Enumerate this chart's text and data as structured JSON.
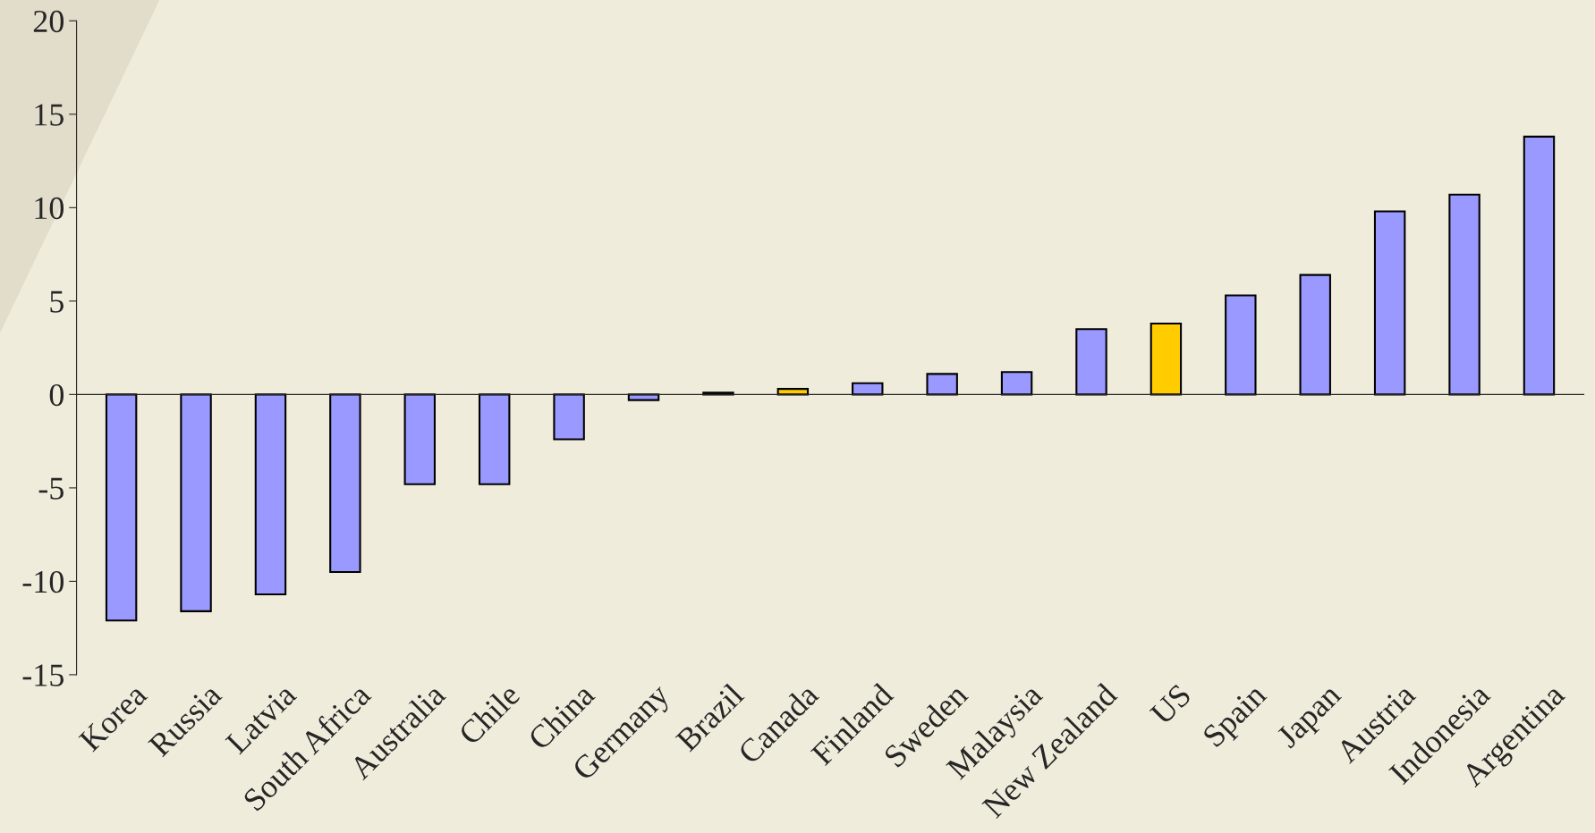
{
  "chart_data": {
    "type": "bar",
    "categories": [
      "Korea",
      "Russia",
      "Latvia",
      "South Africa",
      "Australia",
      "Chile",
      "China",
      "Germany",
      "Brazil",
      "Canada",
      "Finland",
      "Sweden",
      "Malaysia",
      "New Zealand",
      "US",
      "Spain",
      "Japan",
      "Austria",
      "Indonesia",
      "Argentina"
    ],
    "values": [
      -12.1,
      -11.6,
      -10.7,
      -9.5,
      -4.8,
      -4.8,
      -2.4,
      -0.3,
      0.1,
      0.3,
      0.6,
      1.1,
      1.2,
      3.5,
      3.8,
      5.3,
      6.4,
      9.8,
      10.7,
      13.8
    ],
    "colors": [
      "#9999ff",
      "#9999ff",
      "#9999ff",
      "#9999ff",
      "#9999ff",
      "#9999ff",
      "#9999ff",
      "#9999ff",
      "#9999ff",
      "#ffcc00",
      "#9999ff",
      "#9999ff",
      "#9999ff",
      "#9999ff",
      "#ffcc00",
      "#9999ff",
      "#9999ff",
      "#9999ff",
      "#9999ff",
      "#9999ff"
    ],
    "ylim": [
      -15,
      20
    ],
    "yticks": [
      -15,
      -10,
      -5,
      0,
      5,
      10,
      15,
      20
    ],
    "legend": false
  }
}
